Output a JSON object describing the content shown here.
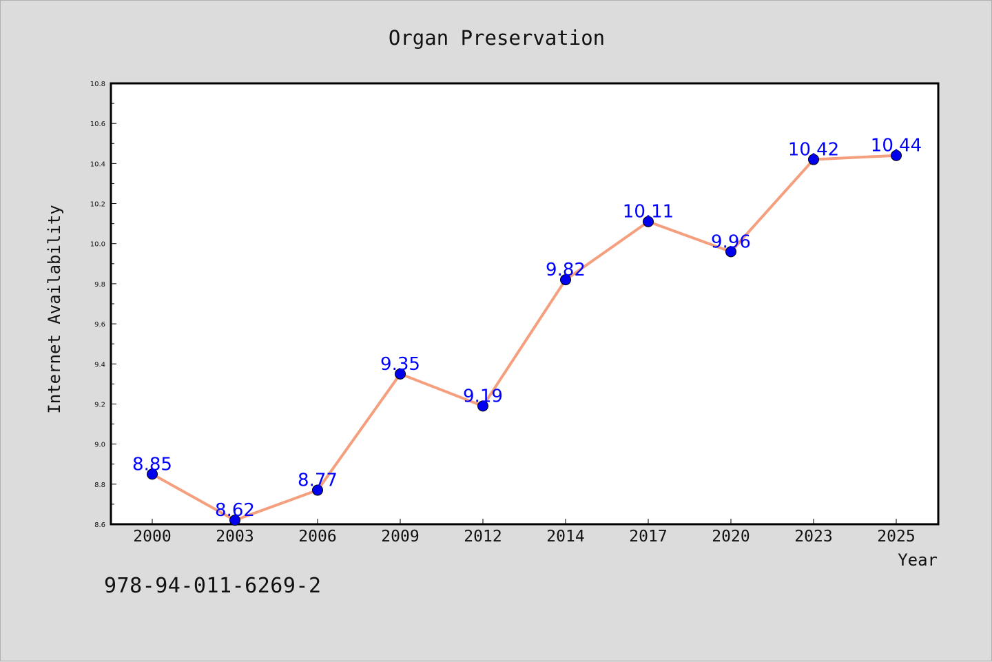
{
  "chart_data": {
    "type": "line",
    "title": "Organ Preservation",
    "xlabel": "Year",
    "ylabel": "Internet Availability",
    "categories": [
      "2000",
      "2003",
      "2006",
      "2009",
      "2012",
      "2014",
      "2017",
      "2020",
      "2023",
      "2025"
    ],
    "series": [
      {
        "values": [
          8.85,
          8.62,
          8.77,
          9.35,
          9.19,
          9.82,
          10.11,
          9.96,
          10.42,
          10.44
        ],
        "data_labels": [
          "8.85",
          "8.62",
          "8.77",
          "9.35",
          "9.19",
          "9.82",
          "10.11",
          "9.96",
          "10.42",
          "10.44"
        ]
      }
    ],
    "ylim": [
      8.6,
      10.8
    ],
    "yticks": [
      "8.6",
      "8.8",
      "9.0",
      "9.2",
      "9.4",
      "9.6",
      "9.8",
      "10.0",
      "10.2",
      "10.4",
      "10.6",
      "10.8"
    ],
    "grid": false,
    "line_color": "#f4a07f",
    "marker_color": "#0000ee",
    "label_color": "#0000ff"
  },
  "footer": {
    "code": "978-94-011-6269-2"
  }
}
